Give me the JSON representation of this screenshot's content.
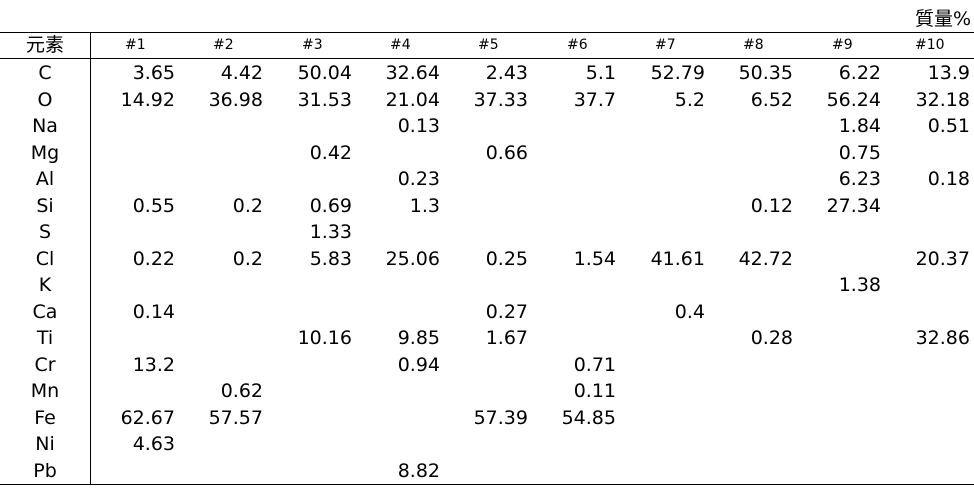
{
  "unit_label": "質量%",
  "header": {
    "element_label": "元素",
    "samples": [
      "#1",
      "#2",
      "#3",
      "#4",
      "#5",
      "#6",
      "#7",
      "#8",
      "#9",
      "#10"
    ]
  },
  "rows": [
    {
      "element": "C",
      "values": [
        "3.65",
        "4.42",
        "50.04",
        "32.64",
        "2.43",
        "5.1",
        "52.79",
        "50.35",
        "6.22",
        "13.9"
      ]
    },
    {
      "element": "O",
      "values": [
        "14.92",
        "36.98",
        "31.53",
        "21.04",
        "37.33",
        "37.7",
        "5.2",
        "6.52",
        "56.24",
        "32.18"
      ]
    },
    {
      "element": "Na",
      "values": [
        "",
        "",
        "",
        "0.13",
        "",
        "",
        "",
        "",
        "1.84",
        "0.51"
      ]
    },
    {
      "element": "Mg",
      "values": [
        "",
        "",
        "0.42",
        "",
        "0.66",
        "",
        "",
        "",
        "0.75",
        ""
      ]
    },
    {
      "element": "Al",
      "values": [
        "",
        "",
        "",
        "0.23",
        "",
        "",
        "",
        "",
        "6.23",
        "0.18"
      ]
    },
    {
      "element": "Si",
      "values": [
        "0.55",
        "0.2",
        "0.69",
        "1.3",
        "",
        "",
        "",
        "0.12",
        "27.34",
        ""
      ]
    },
    {
      "element": "S",
      "values": [
        "",
        "",
        "1.33",
        "",
        "",
        "",
        "",
        "",
        "",
        ""
      ]
    },
    {
      "element": "Cl",
      "values": [
        "0.22",
        "0.2",
        "5.83",
        "25.06",
        "0.25",
        "1.54",
        "41.61",
        "42.72",
        "",
        "20.37"
      ]
    },
    {
      "element": "K",
      "values": [
        "",
        "",
        "",
        "",
        "",
        "",
        "",
        "",
        "1.38",
        ""
      ]
    },
    {
      "element": "Ca",
      "values": [
        "0.14",
        "",
        "",
        "",
        "0.27",
        "",
        "0.4",
        "",
        "",
        ""
      ]
    },
    {
      "element": "Ti",
      "values": [
        "",
        "",
        "10.16",
        "9.85",
        "1.67",
        "",
        "",
        "0.28",
        "",
        "32.86"
      ]
    },
    {
      "element": "Cr",
      "values": [
        "13.2",
        "",
        "",
        "0.94",
        "",
        "0.71",
        "",
        "",
        "",
        ""
      ]
    },
    {
      "element": "Mn",
      "values": [
        "",
        "0.62",
        "",
        "",
        "",
        "0.11",
        "",
        "",
        "",
        ""
      ]
    },
    {
      "element": "Fe",
      "values": [
        "62.67",
        "57.57",
        "",
        "",
        "57.39",
        "54.85",
        "",
        "",
        "",
        ""
      ]
    },
    {
      "element": "Ni",
      "values": [
        "4.63",
        "",
        "",
        "",
        "",
        "",
        "",
        "",
        "",
        ""
      ]
    },
    {
      "element": "Pb",
      "values": [
        "",
        "",
        "",
        "8.82",
        "",
        "",
        "",
        "",
        "",
        ""
      ]
    }
  ]
}
